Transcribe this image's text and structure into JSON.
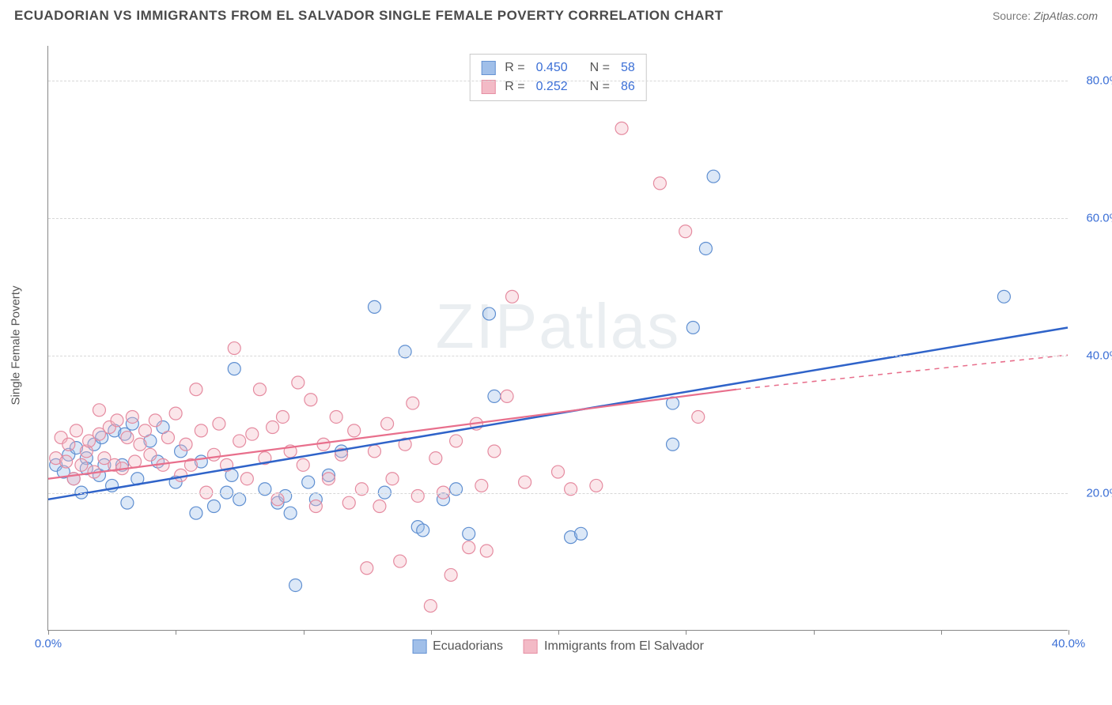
{
  "title": "ECUADORIAN VS IMMIGRANTS FROM EL SALVADOR SINGLE FEMALE POVERTY CORRELATION CHART",
  "source_label": "Source:",
  "source_name": "ZipAtlas.com",
  "watermark": "ZIPatlas",
  "ylabel": "Single Female Poverty",
  "chart": {
    "type": "scatter-with-regression",
    "background_color": "#ffffff",
    "grid_color": "#d8d8d8",
    "axis_color": "#888888",
    "tick_label_color": "#3b6fd6",
    "xlim": [
      0,
      40
    ],
    "ylim": [
      0,
      85
    ],
    "yticks": [
      20,
      40,
      60,
      80
    ],
    "ytick_labels": [
      "20.0%",
      "40.0%",
      "60.0%",
      "80.0%"
    ],
    "xticks": [
      0,
      5,
      10,
      15,
      20,
      25,
      30,
      35,
      40
    ],
    "xtick_labels": {
      "0": "0.0%",
      "40": "40.0%"
    },
    "marker_radius": 8,
    "series": [
      {
        "name": "Ecuadorians",
        "color_fill": "#9bbce8",
        "color_stroke": "#5f8fd1",
        "R": "0.450",
        "N": "58",
        "regression": {
          "x1": 0,
          "y1": 19,
          "x2": 40,
          "y2": 44,
          "color": "#2f63c9",
          "width": 2.5,
          "dash_from_x": 40
        },
        "points": [
          [
            0.3,
            24
          ],
          [
            0.6,
            23
          ],
          [
            0.8,
            25.5
          ],
          [
            1.0,
            22
          ],
          [
            1.1,
            26.5
          ],
          [
            1.3,
            20
          ],
          [
            1.5,
            25
          ],
          [
            1.5,
            23.5
          ],
          [
            1.8,
            27
          ],
          [
            2.0,
            22.5
          ],
          [
            2.1,
            28
          ],
          [
            2.2,
            24
          ],
          [
            2.5,
            21
          ],
          [
            2.6,
            29
          ],
          [
            2.9,
            24
          ],
          [
            3.0,
            28.5
          ],
          [
            3.1,
            18.5
          ],
          [
            3.3,
            30
          ],
          [
            3.5,
            22
          ],
          [
            4.0,
            27.5
          ],
          [
            4.3,
            24.5
          ],
          [
            4.5,
            29.5
          ],
          [
            5.0,
            21.5
          ],
          [
            5.2,
            26
          ],
          [
            5.8,
            17
          ],
          [
            6.0,
            24.5
          ],
          [
            6.5,
            18
          ],
          [
            7.0,
            20
          ],
          [
            7.2,
            22.5
          ],
          [
            7.3,
            38
          ],
          [
            7.5,
            19
          ],
          [
            8.5,
            20.5
          ],
          [
            9.0,
            18.5
          ],
          [
            9.3,
            19.5
          ],
          [
            9.5,
            17
          ],
          [
            9.7,
            6.5
          ],
          [
            10.2,
            21.5
          ],
          [
            10.5,
            19
          ],
          [
            11.0,
            22.5
          ],
          [
            11.5,
            26
          ],
          [
            12.8,
            47
          ],
          [
            13.2,
            20
          ],
          [
            14.0,
            40.5
          ],
          [
            14.5,
            15
          ],
          [
            14.7,
            14.5
          ],
          [
            15.5,
            19
          ],
          [
            16.0,
            20.5
          ],
          [
            16.5,
            14
          ],
          [
            17.3,
            46
          ],
          [
            17.5,
            34
          ],
          [
            20.5,
            13.5
          ],
          [
            20.9,
            14
          ],
          [
            24.5,
            33
          ],
          [
            24.5,
            27
          ],
          [
            25.3,
            44
          ],
          [
            25.8,
            55.5
          ],
          [
            26.1,
            66
          ],
          [
            37.5,
            48.5
          ]
        ]
      },
      {
        "name": "Immigrants from El Salvador",
        "color_fill": "#f3b7c4",
        "color_stroke": "#e58ba0",
        "R": "0.252",
        "N": "86",
        "regression": {
          "x1": 0,
          "y1": 22,
          "x2": 27,
          "y2": 35,
          "extend_to_x": 40,
          "extend_to_y": 40,
          "color": "#e86f8c",
          "width": 2.2
        },
        "points": [
          [
            0.3,
            25
          ],
          [
            0.5,
            28
          ],
          [
            0.7,
            24.5
          ],
          [
            0.8,
            27
          ],
          [
            1.0,
            22
          ],
          [
            1.1,
            29
          ],
          [
            1.3,
            24
          ],
          [
            1.5,
            26
          ],
          [
            1.6,
            27.5
          ],
          [
            1.8,
            23
          ],
          [
            2.0,
            32
          ],
          [
            2.0,
            28.5
          ],
          [
            2.2,
            25
          ],
          [
            2.4,
            29.5
          ],
          [
            2.6,
            24
          ],
          [
            2.7,
            30.5
          ],
          [
            2.9,
            23.5
          ],
          [
            3.1,
            28
          ],
          [
            3.3,
            31
          ],
          [
            3.4,
            24.5
          ],
          [
            3.6,
            27
          ],
          [
            3.8,
            29
          ],
          [
            4.0,
            25.5
          ],
          [
            4.2,
            30.5
          ],
          [
            4.5,
            24
          ],
          [
            4.7,
            28
          ],
          [
            5.0,
            31.5
          ],
          [
            5.2,
            22.5
          ],
          [
            5.4,
            27
          ],
          [
            5.6,
            24
          ],
          [
            5.8,
            35
          ],
          [
            6.0,
            29
          ],
          [
            6.2,
            20
          ],
          [
            6.5,
            25.5
          ],
          [
            6.7,
            30
          ],
          [
            7.0,
            24
          ],
          [
            7.3,
            41
          ],
          [
            7.5,
            27.5
          ],
          [
            7.8,
            22
          ],
          [
            8.0,
            28.5
          ],
          [
            8.3,
            35
          ],
          [
            8.5,
            25
          ],
          [
            8.8,
            29.5
          ],
          [
            9.0,
            19
          ],
          [
            9.2,
            31
          ],
          [
            9.5,
            26
          ],
          [
            9.8,
            36
          ],
          [
            10.0,
            24
          ],
          [
            10.3,
            33.5
          ],
          [
            10.5,
            18
          ],
          [
            10.8,
            27
          ],
          [
            11.0,
            22
          ],
          [
            11.3,
            31
          ],
          [
            11.5,
            25.5
          ],
          [
            11.8,
            18.5
          ],
          [
            12.0,
            29
          ],
          [
            12.3,
            20.5
          ],
          [
            12.5,
            9
          ],
          [
            12.8,
            26
          ],
          [
            13.0,
            18
          ],
          [
            13.3,
            30
          ],
          [
            13.5,
            22
          ],
          [
            13.8,
            10
          ],
          [
            14.0,
            27
          ],
          [
            14.3,
            33
          ],
          [
            14.5,
            19.5
          ],
          [
            15.0,
            3.5
          ],
          [
            15.2,
            25
          ],
          [
            15.5,
            20
          ],
          [
            15.8,
            8
          ],
          [
            16.0,
            27.5
          ],
          [
            16.5,
            12
          ],
          [
            16.8,
            30
          ],
          [
            17.0,
            21
          ],
          [
            17.2,
            11.5
          ],
          [
            17.5,
            26
          ],
          [
            18.0,
            34
          ],
          [
            18.2,
            48.5
          ],
          [
            18.7,
            21.5
          ],
          [
            20.0,
            23
          ],
          [
            20.5,
            20.5
          ],
          [
            21.5,
            21
          ],
          [
            22.5,
            73
          ],
          [
            24.0,
            65
          ],
          [
            25.0,
            58
          ],
          [
            25.5,
            31
          ]
        ]
      }
    ]
  },
  "legend_top": {
    "r_label": "R =",
    "n_label": "N ="
  },
  "legend_bottom": [
    {
      "swatch_fill": "#9bbce8",
      "swatch_stroke": "#5f8fd1",
      "label": "Ecuadorians"
    },
    {
      "swatch_fill": "#f3b7c4",
      "swatch_stroke": "#e58ba0",
      "label": "Immigrants from El Salvador"
    }
  ]
}
